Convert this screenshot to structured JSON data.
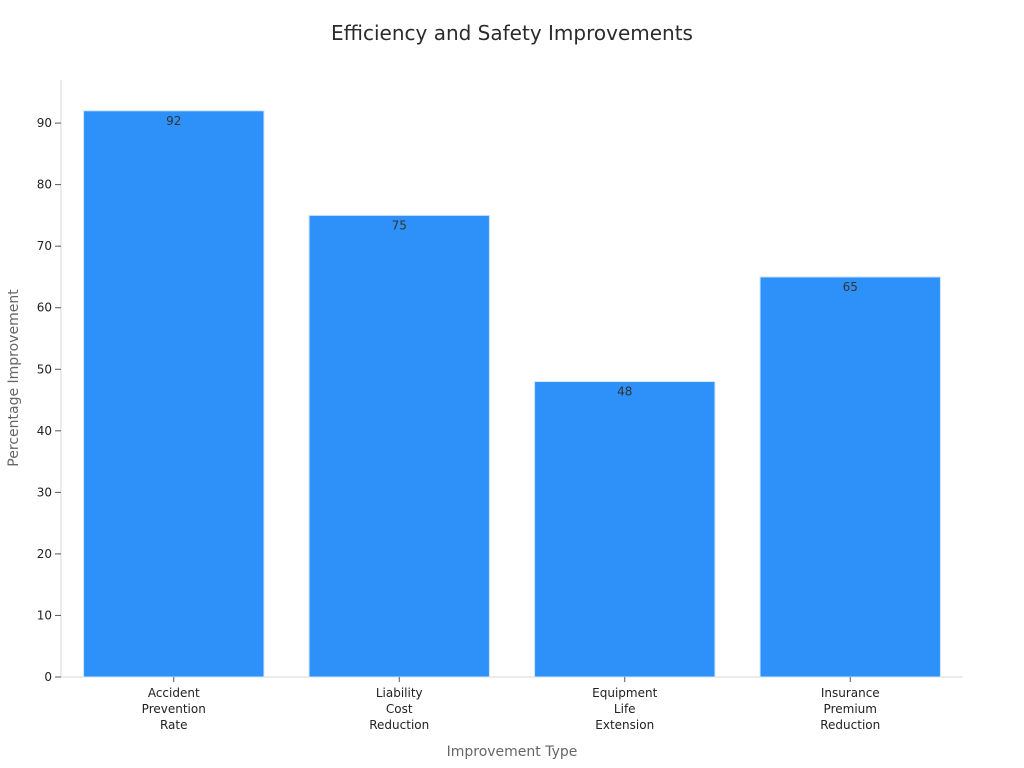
{
  "chart_data": {
    "type": "bar",
    "title": "Efficiency and Safety Improvements",
    "xlabel": "Improvement Type",
    "ylabel": "Percentage Improvement",
    "categories": [
      [
        "Accident",
        "Prevention",
        "Rate"
      ],
      [
        "Liability",
        "Cost",
        "Reduction"
      ],
      [
        "Equipment",
        "Life",
        "Extension"
      ],
      [
        "Insurance",
        "Premium",
        "Reduction"
      ]
    ],
    "values": [
      92,
      75,
      48,
      65
    ],
    "ylim": [
      0,
      97
    ],
    "yticks": [
      0,
      10,
      20,
      30,
      40,
      50,
      60,
      70,
      80,
      90
    ],
    "bar_color": "#2e91f9",
    "grid": false,
    "legend": "none"
  }
}
